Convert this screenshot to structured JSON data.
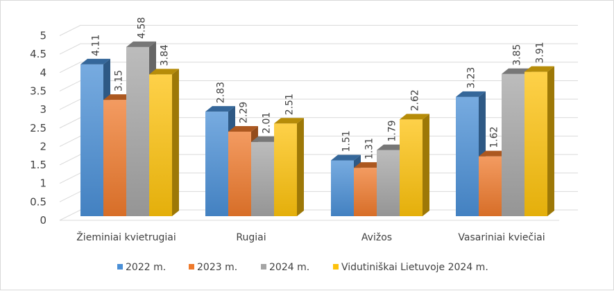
{
  "chart_data": {
    "type": "bar",
    "title": "",
    "xlabel": "",
    "ylabel": "",
    "ylim": [
      0,
      5
    ],
    "yticks": [
      "0",
      "0.5",
      "1",
      "1.5",
      "2",
      "2.5",
      "3",
      "3.5",
      "4",
      "4.5",
      "5"
    ],
    "grid": true,
    "legend_position": "bottom",
    "categories": [
      "Žieminiai kvietrugiai",
      "Rugiai",
      "Avižos",
      "Vasariniai kviečiai"
    ],
    "series": [
      {
        "name": "2022 m.",
        "color": "#4a8fd6",
        "values": [
          4.11,
          2.83,
          1.51,
          3.23
        ]
      },
      {
        "name": "2023 m.",
        "color": "#ef7a2c",
        "values": [
          3.15,
          2.29,
          1.31,
          1.62
        ]
      },
      {
        "name": "2024 m.",
        "color": "#a5a5a5",
        "values": [
          4.58,
          2.01,
          1.79,
          3.85
        ]
      },
      {
        "name": "Vidutiniškai Lietuvoje 2024 m.",
        "color": "#fdc20c",
        "values": [
          3.84,
          2.51,
          2.62,
          3.91
        ]
      }
    ]
  }
}
